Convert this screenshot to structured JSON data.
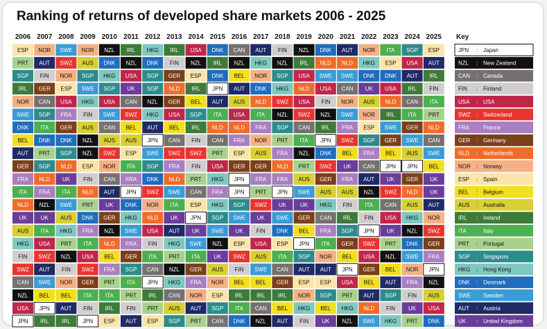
{
  "chart_data": {
    "type": "table",
    "title": "Ranking of returns of developed share markets 2006 - 2025",
    "years": [
      "2006",
      "2007",
      "2008",
      "2009",
      "2010",
      "2011",
      "2012",
      "2013",
      "2014",
      "2015",
      "2016",
      "2017",
      "2018",
      "2019",
      "2020",
      "2021",
      "2022",
      "2023",
      "2024",
      "2025"
    ],
    "rankings": [
      [
        "ESP",
        "NOR",
        "SWE",
        "NOR",
        "NZL",
        "IRL",
        "HKG",
        "IRL",
        "USA",
        "DNK",
        "CAN",
        "AUT",
        "FIN",
        "NZL",
        "DNK",
        "AUT",
        "NOR",
        "ITA",
        "SGP",
        "ESP"
      ],
      [
        "PRT",
        "AUT",
        "SWZ",
        "AUS",
        "DNK",
        "NZL",
        "DNK",
        "FIN",
        "NZL",
        "IRL",
        "NZL",
        "HKG",
        "NZL",
        "IRL",
        "NLD",
        "NLD",
        "HKG",
        "ESP",
        "USA",
        "AUT"
      ],
      [
        "SGP",
        "FIN",
        "NOR",
        "SGP",
        "HKG",
        "USA",
        "SGP",
        "GER",
        "ESP",
        "DNK",
        "BEL",
        "NOR",
        "SGP",
        "USA",
        "SWE",
        "SWE",
        "DNK",
        "DNK",
        "AUT",
        "IRL"
      ],
      [
        "IRL",
        "GER",
        "ESP",
        "SWE",
        "SGP",
        "UK",
        "SGP",
        "NLD",
        "IRL",
        "JPN",
        "AUT",
        "DNK",
        "HKG",
        "NLD",
        "USA",
        "CAN",
        "UK",
        "USA",
        "IRL",
        "FIN"
      ],
      [
        "NOR",
        "CAN",
        "USA",
        "HKG",
        "USA",
        "CAN",
        "NZL",
        "GER",
        "BEL",
        "AUT",
        "AUS",
        "NLD",
        "SWZ",
        "USA",
        "FIN",
        "NOR",
        "AUS",
        "NLD",
        "CAN",
        "ITA"
      ],
      [
        "SWE",
        "SGP",
        "FRA",
        "FIN",
        "SWE",
        "SWZ",
        "HKG",
        "USA",
        "SGP",
        "ITA",
        "USA",
        "ITA",
        "NZL",
        "SWZ",
        "NZL",
        "SWE",
        "NOR",
        "IRL",
        "ITA",
        "PRT"
      ],
      [
        "DNK",
        "ITA",
        "GER",
        "AUS",
        "CAN",
        "BEL",
        "AUT",
        "BEL",
        "IRL",
        "NLD",
        "NLD",
        "FRA",
        "SGP",
        "CAN",
        "IRL",
        "FRA",
        "ESP",
        "SWE",
        "GER",
        "NLD"
      ],
      [
        "BEL",
        "DNK",
        "DNK",
        "NZL",
        "AUS",
        "AUS",
        "JPN",
        "CAN",
        "FIN",
        "CAN",
        "FRA",
        "NOR",
        "PRT",
        "ITA",
        "JPN",
        "SWZ",
        "SGP",
        "GER",
        "SWE",
        "CAN"
      ],
      [
        "AUT",
        "PRT",
        "SGP",
        "NZL",
        "SWZ",
        "ESP",
        "SWE",
        "SWZ",
        "SWZ",
        "PRT",
        "ESP",
        "AUS",
        "FRA",
        "NZL",
        "DNK",
        "BEL",
        "FRA",
        "BEL",
        "AUS",
        "SWE"
      ],
      [
        "GER",
        "SGP",
        "NLD",
        "ESP",
        "NOR",
        "ITA",
        "SGP",
        "FRA",
        "FIN",
        "USA",
        "GER",
        "GER",
        "NLD",
        "PRT",
        "SWZ",
        "UK",
        "CAN",
        "JPN",
        "JPN",
        "BEL"
      ],
      [
        "FRA",
        "NLD",
        "UK",
        "FIN",
        "CAN",
        "FRA",
        "DNK",
        "NLD",
        "PRT",
        "HKG",
        "JPN",
        "FRA",
        "FRA",
        "AUS",
        "GER",
        "FRA",
        "AUT",
        "UK",
        "GER",
        "UK"
      ],
      [
        "ITA",
        "FRA",
        "ITA",
        "NLD",
        "AUT",
        "JPN",
        "SWZ",
        "SWE",
        "CAN",
        "FRA",
        "JPN",
        "PRT",
        "JPN",
        "SWE",
        "AUS",
        "AUS",
        "NZL",
        "SWZ",
        "NLD",
        "UK"
      ],
      [
        "NLD",
        "NZL",
        "SWE",
        "PRT",
        "UK",
        "DNK",
        "NOR",
        "ITA",
        "ESP",
        "HKG",
        "SGP",
        "SWZ",
        "UK",
        "UK",
        "HKG",
        "FIN",
        "ITA",
        "CAN",
        "AUS",
        "AUT"
      ],
      [
        "UK",
        "UK",
        "AUS",
        "DNK",
        "GER",
        "HKG",
        "NLD",
        "UK",
        "JPN",
        "SGP",
        "SWE",
        "UK",
        "SWE",
        "GER",
        "CAN",
        "IRL",
        "FIN",
        "USA",
        "HKG",
        "NOR"
      ],
      [
        "AUS",
        "ITA",
        "HKG",
        "FRA",
        "NZL",
        "SWE",
        "USA",
        "AUT",
        "UK",
        "SWE",
        "UK",
        "FIN",
        "DNK",
        "BEL",
        "FRA",
        "SGP",
        "JPN",
        "UK",
        "NZL",
        "SWZ"
      ],
      [
        "HKG",
        "USA",
        "PRT",
        "ITA",
        "NLD",
        "FRA",
        "FIN",
        "HKG",
        "SWE",
        "NZL",
        "ESP",
        "USA",
        "ESP",
        "JPN",
        "ITA",
        "GER",
        "SWZ",
        "PRT",
        "DNK",
        "GER"
      ],
      [
        "FIN",
        "SWZ",
        "NZL",
        "USA",
        "BEL",
        "GER",
        "ITA",
        "PRT",
        "ITA",
        "UK",
        "SWZ",
        "AUS",
        "ITA",
        "SGP",
        "NOR",
        "BEL",
        "USA",
        "NZL",
        "SWE",
        "FRA"
      ],
      [
        "SWZ",
        "AUT",
        "FIN",
        "SWZ",
        "FRA",
        "SGP",
        "CAN",
        "NZL",
        "GER",
        "AUS",
        "FIN",
        "SWE",
        "CAN",
        "AUT",
        "AUT",
        "JPN",
        "GER",
        "BEL",
        "NOR",
        "JPN"
      ],
      [
        "CAN",
        "SWE",
        "NOR",
        "GER",
        "PRT",
        "ITA",
        "JPN",
        "HKG",
        "FRA",
        "NOR",
        "BEL",
        "BEL",
        "GER",
        "ESP",
        "ESP",
        "USA",
        "BEL",
        "AUT",
        "FRA",
        "NZL"
      ],
      [
        "NZL",
        "BEL",
        "BEL",
        "ITA",
        "ITA",
        "PRT",
        "IRL",
        "CAN",
        "NOR",
        "ESP",
        "IRL",
        "IRL",
        "IRL",
        "NOR",
        "SGP",
        "PRT",
        "AUT",
        "SGP",
        "FIN",
        "AUS"
      ],
      [
        "USA",
        "JPN",
        "AUT",
        "FIN",
        "IRL",
        "FIN",
        "PRT",
        "AUS",
        "AUT",
        "SGP",
        "ITA",
        "CAN",
        "BEL",
        "HKG",
        "BEL",
        "HKG",
        "NLD",
        "FIN",
        "UK",
        "USA"
      ],
      [
        "JPN",
        "IRL",
        "IRL",
        "JPN",
        "ESP",
        "AUT",
        "ESP",
        "SGP",
        "PRT",
        "CAN",
        "DNK",
        "NZL",
        "AUT",
        "FIN",
        "UK",
        "NZL",
        "SWE",
        "HKG",
        "PRT",
        "DNK"
      ]
    ]
  },
  "key": {
    "title": "Key",
    "items": [
      {
        "code": "JPN",
        "name": "Japan"
      },
      {
        "code": "NZL",
        "name": "New Zealand"
      },
      {
        "code": "CAN",
        "name": "Canada"
      },
      {
        "code": "FIN",
        "name": "Finland"
      },
      {
        "code": "USA",
        "name": "USA"
      },
      {
        "code": "SWZ",
        "name": "Switzerland"
      },
      {
        "code": "FRA",
        "name": "France"
      },
      {
        "code": "GER",
        "name": "Germany"
      },
      {
        "code": "NLD",
        "name": "Netherlands"
      },
      {
        "code": "NOR",
        "name": "Norway"
      },
      {
        "code": "ESP",
        "name": "Spain"
      },
      {
        "code": "BEL",
        "name": "Belgium"
      },
      {
        "code": "AUS",
        "name": "Australia"
      },
      {
        "code": "IRL",
        "name": "Ireland"
      },
      {
        "code": "ITA",
        "name": "Italy"
      },
      {
        "code": "PRT",
        "name": "Portugal"
      },
      {
        "code": "SGP",
        "name": "Singapore"
      },
      {
        "code": "HKG",
        "name": "Hong Kong"
      },
      {
        "code": "DNK",
        "name": "Denmark"
      },
      {
        "code": "SWE",
        "name": "Sweden"
      },
      {
        "code": "AUT",
        "name": "Austria"
      },
      {
        "code": "UK",
        "name": "United Kingdom"
      }
    ]
  },
  "colors": {
    "JPN": "#ffffff",
    "NZL": "#111111",
    "CAN": "#767171",
    "FIN": "#d0cece",
    "USA": "#c0264a",
    "SWZ": "#e8342f",
    "FRA": "#a97fc0",
    "GER": "#7b3f1a",
    "NLD": "#ef6c2b",
    "NOR": "#f4b183",
    "ESP": "#fbe5a8",
    "BEL": "#f2df1e",
    "AUS": "#d8d034",
    "IRL": "#3e7b3a",
    "ITA": "#4caf50",
    "PRT": "#a9d18e",
    "SGP": "#2e8b8b",
    "HKG": "#7fc8c0",
    "DNK": "#1f6dbd",
    "SWE": "#3a9bd5",
    "AUT": "#1f2a66",
    "UK": "#6a3d9a"
  },
  "text_colors": {
    "JPN": "#111111",
    "NZL": "#ffffff",
    "CAN": "#ffffff",
    "FIN": "#111111",
    "USA": "#ffffff",
    "SWZ": "#ffffff",
    "FRA": "#ffffff",
    "GER": "#ffffff",
    "NLD": "#ffffff",
    "NOR": "#111111",
    "ESP": "#111111",
    "BEL": "#111111",
    "AUS": "#111111",
    "IRL": "#ffffff",
    "ITA": "#ffffff",
    "PRT": "#111111",
    "SGP": "#ffffff",
    "HKG": "#111111",
    "DNK": "#ffffff",
    "SWE": "#ffffff",
    "AUT": "#ffffff",
    "UK": "#ffffff"
  }
}
